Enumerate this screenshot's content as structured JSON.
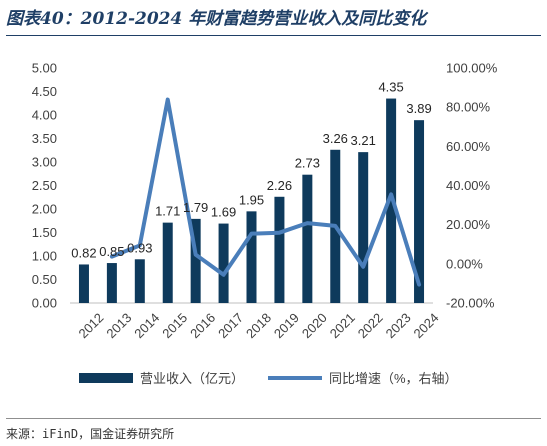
{
  "figure": {
    "title": "图表40：2012-2024 年财富趋势营业收入及同比变化",
    "source": "来源：iFinD，国金证券研究所"
  },
  "colors": {
    "bar": "#0e3a5c",
    "line": "#4a7eba",
    "text": "#404040",
    "title": "#1f3f66"
  },
  "chart_data": {
    "type": "bar",
    "categories": [
      "2012",
      "2013",
      "2014",
      "2015",
      "2016",
      "2017",
      "2018",
      "2019",
      "2020",
      "2021",
      "2022",
      "2023",
      "2024"
    ],
    "series": [
      {
        "name": "营业收入（亿元）",
        "type": "bar",
        "axis": "left",
        "values": [
          0.82,
          0.85,
          0.93,
          1.71,
          1.79,
          1.69,
          1.95,
          2.26,
          2.73,
          3.26,
          3.21,
          4.35,
          3.89
        ],
        "labels": [
          "0.82",
          "0.85",
          "0.93",
          "1.71",
          "1.79",
          "1.69",
          "1.95",
          "2.26",
          "2.73",
          "3.26",
          "3.21",
          "4.35",
          "3.89"
        ]
      },
      {
        "name": "同比增速（%，右轴）",
        "type": "line",
        "axis": "right",
        "values": [
          null,
          3.7,
          9.4,
          83.9,
          4.7,
          -5.6,
          15.4,
          15.9,
          20.8,
          19.4,
          -1.5,
          35.5,
          -10.6
        ]
      }
    ],
    "y_left": {
      "ylim": [
        0,
        5
      ],
      "ticks": [
        0,
        0.5,
        1,
        1.5,
        2,
        2.5,
        3,
        3.5,
        4,
        4.5,
        5
      ],
      "tick_labels": [
        "0.00",
        "0.50",
        "1.00",
        "1.50",
        "2.00",
        "2.50",
        "3.00",
        "3.50",
        "4.00",
        "4.50",
        "5.00"
      ]
    },
    "y_right": {
      "ylim": [
        -20,
        100
      ],
      "ticks": [
        -20,
        0,
        20,
        40,
        60,
        80,
        100
      ],
      "tick_labels": [
        "-20.00%",
        "0.00%",
        "20.00%",
        "40.00%",
        "60.00%",
        "80.00%",
        "100.00%"
      ]
    },
    "grid": false,
    "legend": "bottom"
  }
}
